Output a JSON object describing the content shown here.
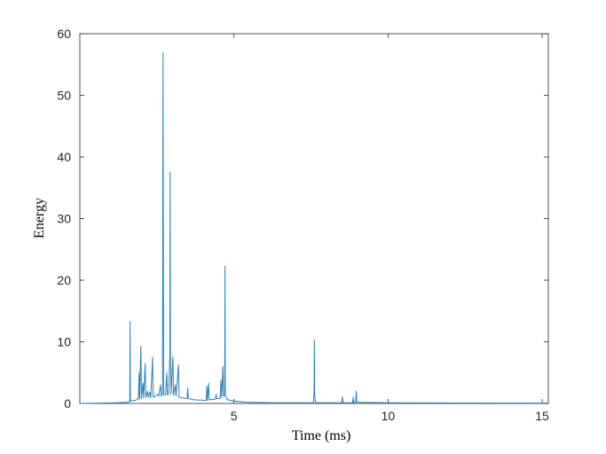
{
  "chart_data": {
    "type": "line",
    "title": "",
    "xlabel": "Time (ms)",
    "ylabel": "Energy",
    "xlim": [
      0,
      15.2
    ],
    "ylim": [
      0,
      60
    ],
    "xticks": [
      5,
      10,
      15
    ],
    "xtick_labels": [
      "5",
      "10",
      "15"
    ],
    "yticks": [
      0,
      10,
      20,
      30,
      40,
      50,
      60
    ],
    "ytick_labels": [
      "0",
      "10",
      "20",
      "30",
      "40",
      "50",
      "60"
    ],
    "grid": false,
    "series": [
      {
        "name": "",
        "color": "#2e7fb3",
        "points": [
          [
            0.0,
            0.0
          ],
          [
            1.2,
            0.1
          ],
          [
            1.55,
            0.2
          ],
          [
            1.62,
            0.3
          ],
          [
            1.63,
            13.3
          ],
          [
            1.64,
            0.4
          ],
          [
            1.8,
            0.5
          ],
          [
            1.9,
            0.8
          ],
          [
            1.92,
            5.0
          ],
          [
            1.94,
            0.7
          ],
          [
            1.98,
            9.3
          ],
          [
            2.0,
            0.8
          ],
          [
            2.05,
            3.3
          ],
          [
            2.07,
            0.9
          ],
          [
            2.12,
            6.5
          ],
          [
            2.14,
            1.0
          ],
          [
            2.2,
            2.0
          ],
          [
            2.22,
            1.0
          ],
          [
            2.28,
            1.8
          ],
          [
            2.3,
            0.9
          ],
          [
            2.36,
            7.5
          ],
          [
            2.38,
            1.0
          ],
          [
            2.45,
            1.2
          ],
          [
            2.52,
            1.5
          ],
          [
            2.56,
            1.2
          ],
          [
            2.62,
            3.0
          ],
          [
            2.64,
            1.2
          ],
          [
            2.68,
            1.3
          ],
          [
            2.69,
            25.3
          ],
          [
            2.7,
            56.9
          ],
          [
            2.71,
            25.0
          ],
          [
            2.72,
            1.5
          ],
          [
            2.78,
            1.4
          ],
          [
            2.82,
            5.0
          ],
          [
            2.84,
            1.4
          ],
          [
            2.88,
            1.5
          ],
          [
            2.92,
            7.5
          ],
          [
            2.93,
            37.6
          ],
          [
            2.94,
            8.0
          ],
          [
            2.96,
            1.5
          ],
          [
            3.02,
            7.6
          ],
          [
            3.04,
            1.3
          ],
          [
            3.1,
            3.0
          ],
          [
            3.12,
            1.2
          ],
          [
            3.2,
            6.3
          ],
          [
            3.22,
            1.0
          ],
          [
            3.3,
            0.9
          ],
          [
            3.48,
            0.8
          ],
          [
            3.5,
            2.5
          ],
          [
            3.52,
            0.8
          ],
          [
            3.7,
            0.6
          ],
          [
            4.1,
            0.5
          ],
          [
            4.12,
            2.8
          ],
          [
            4.14,
            0.5
          ],
          [
            4.18,
            3.3
          ],
          [
            4.2,
            0.6
          ],
          [
            4.4,
            0.7
          ],
          [
            4.42,
            1.5
          ],
          [
            4.44,
            0.8
          ],
          [
            4.55,
            0.8
          ],
          [
            4.58,
            3.8
          ],
          [
            4.6,
            1.0
          ],
          [
            4.64,
            6.0
          ],
          [
            4.66,
            1.2
          ],
          [
            4.7,
            1.4
          ],
          [
            4.71,
            22.3
          ],
          [
            4.72,
            1.2
          ],
          [
            4.8,
            0.6
          ],
          [
            5.0,
            0.4
          ],
          [
            5.4,
            0.2
          ],
          [
            6.3,
            0.1
          ],
          [
            7.58,
            0.1
          ],
          [
            7.6,
            2.0
          ],
          [
            7.61,
            10.3
          ],
          [
            7.62,
            1.5
          ],
          [
            7.64,
            0.1
          ],
          [
            8.5,
            0.1
          ],
          [
            8.52,
            1.1
          ],
          [
            8.54,
            0.1
          ],
          [
            8.85,
            0.1
          ],
          [
            8.87,
            1.0
          ],
          [
            8.89,
            0.1
          ],
          [
            8.95,
            0.2
          ],
          [
            8.97,
            2.0
          ],
          [
            8.99,
            0.2
          ],
          [
            10.0,
            0.1
          ],
          [
            15.2,
            0.05
          ]
        ]
      }
    ]
  }
}
